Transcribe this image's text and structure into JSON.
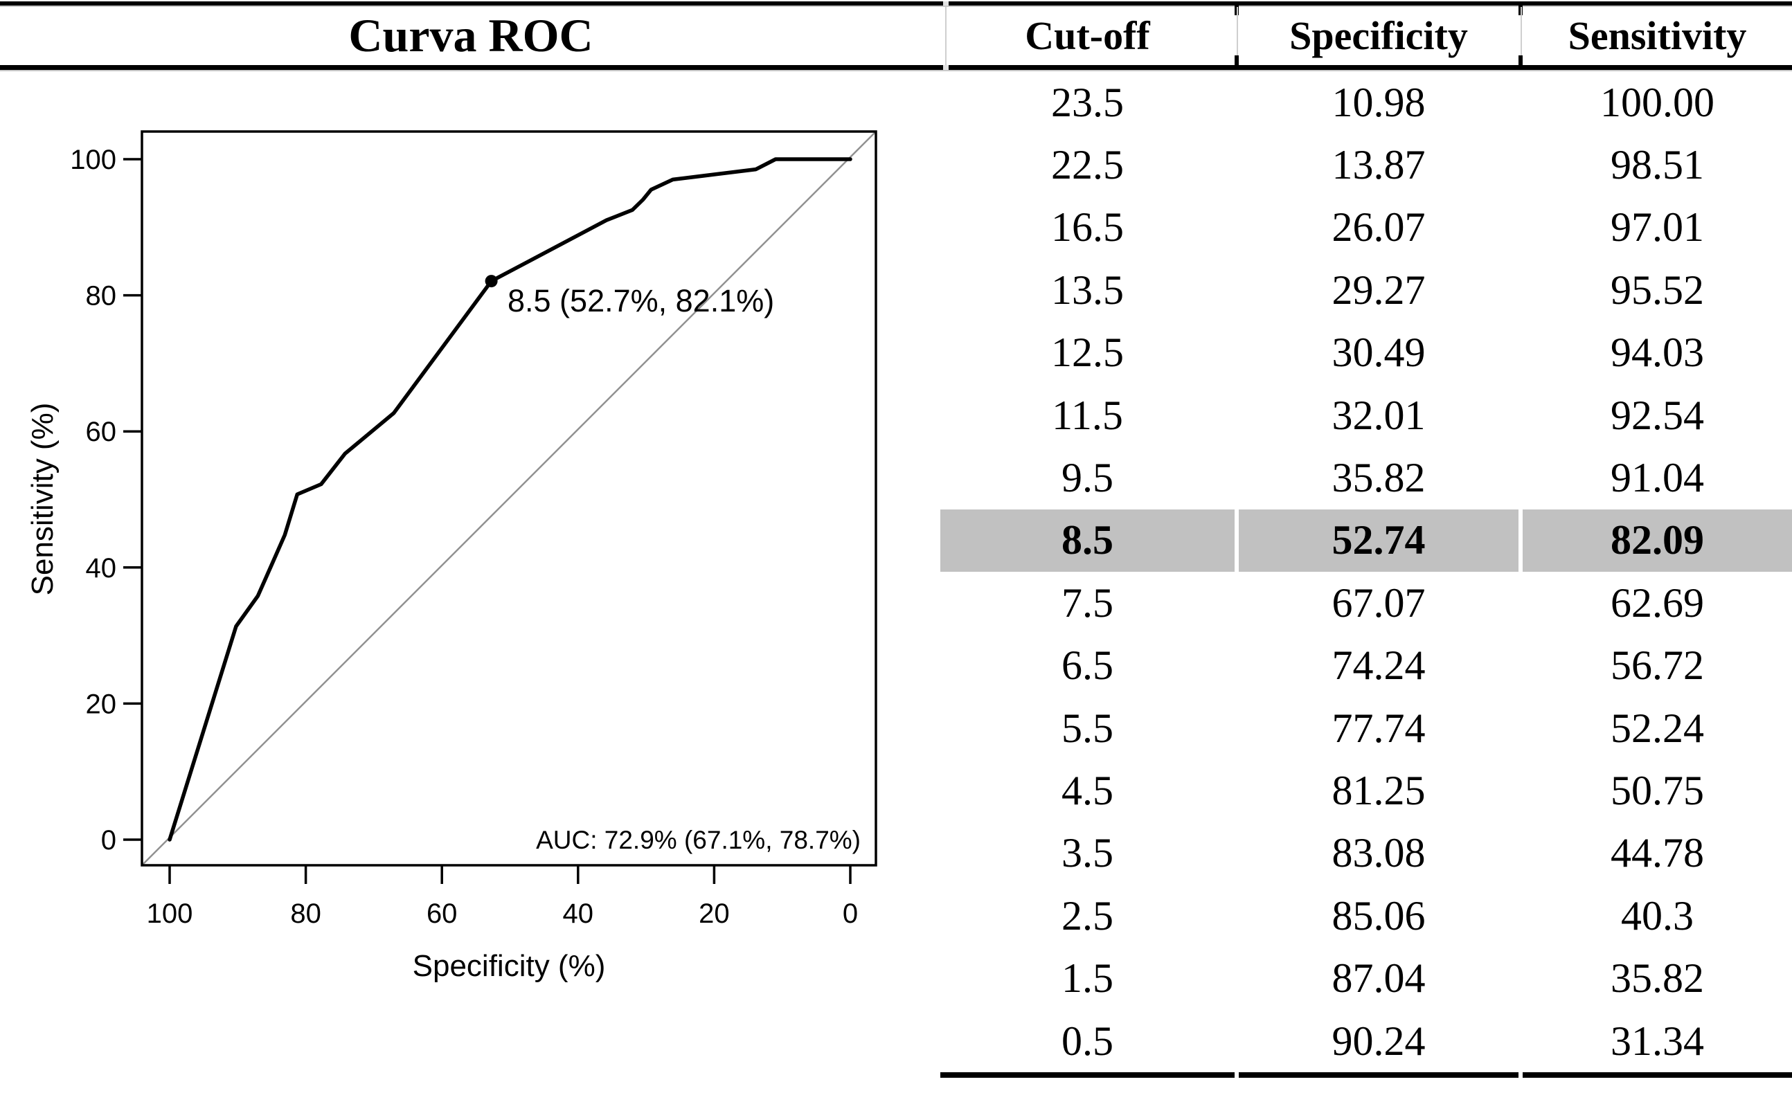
{
  "title": "Curva ROC",
  "table": {
    "headers": [
      "Cut-off",
      "Specificity",
      "Sensitivity"
    ],
    "rows": [
      {
        "cutoff": "23.5",
        "specificity": "10.98",
        "sensitivity": "100.00",
        "highlight": false
      },
      {
        "cutoff": "22.5",
        "specificity": "13.87",
        "sensitivity": "98.51",
        "highlight": false
      },
      {
        "cutoff": "16.5",
        "specificity": "26.07",
        "sensitivity": "97.01",
        "highlight": false
      },
      {
        "cutoff": "13.5",
        "specificity": "29.27",
        "sensitivity": "95.52",
        "highlight": false
      },
      {
        "cutoff": "12.5",
        "specificity": "30.49",
        "sensitivity": "94.03",
        "highlight": false
      },
      {
        "cutoff": "11.5",
        "specificity": "32.01",
        "sensitivity": "92.54",
        "highlight": false
      },
      {
        "cutoff": "9.5",
        "specificity": "35.82",
        "sensitivity": "91.04",
        "highlight": false
      },
      {
        "cutoff": "8.5",
        "specificity": "52.74",
        "sensitivity": "82.09",
        "highlight": true
      },
      {
        "cutoff": "7.5",
        "specificity": "67.07",
        "sensitivity": "62.69",
        "highlight": false
      },
      {
        "cutoff": "6.5",
        "specificity": "74.24",
        "sensitivity": "56.72",
        "highlight": false
      },
      {
        "cutoff": "5.5",
        "specificity": "77.74",
        "sensitivity": "52.24",
        "highlight": false
      },
      {
        "cutoff": "4.5",
        "specificity": "81.25",
        "sensitivity": "50.75",
        "highlight": false
      },
      {
        "cutoff": "3.5",
        "specificity": "83.08",
        "sensitivity": "44.78",
        "highlight": false
      },
      {
        "cutoff": "2.5",
        "specificity": "85.06",
        "sensitivity": "40.3",
        "highlight": false
      },
      {
        "cutoff": "1.5",
        "specificity": "87.04",
        "sensitivity": "35.82",
        "highlight": false
      },
      {
        "cutoff": "0.5",
        "specificity": "90.24",
        "sensitivity": "31.34",
        "highlight": false
      }
    ]
  },
  "chart_data": {
    "type": "line",
    "title": "Curva ROC",
    "xlabel": "Specificity (%)",
    "ylabel": "Sensitivity (%)",
    "x_axis": {
      "ticks": [
        100,
        80,
        60,
        40,
        20,
        0
      ],
      "range": [
        100,
        0
      ],
      "reversed": true
    },
    "y_axis": {
      "ticks": [
        0,
        20,
        40,
        60,
        80,
        100
      ],
      "range": [
        0,
        100
      ]
    },
    "grid": false,
    "diagonal_reference_line": true,
    "roc_points": [
      [
        100,
        0
      ],
      [
        90.24,
        31.34
      ],
      [
        87.04,
        35.82
      ],
      [
        85.06,
        40.3
      ],
      [
        83.08,
        44.78
      ],
      [
        81.25,
        50.75
      ],
      [
        77.74,
        52.24
      ],
      [
        74.24,
        56.72
      ],
      [
        67.07,
        62.69
      ],
      [
        52.74,
        82.09
      ],
      [
        35.82,
        91.04
      ],
      [
        32.01,
        92.54
      ],
      [
        30.49,
        94.03
      ],
      [
        29.27,
        95.52
      ],
      [
        26.07,
        97.01
      ],
      [
        13.87,
        98.51
      ],
      [
        10.98,
        100
      ],
      [
        0,
        100
      ]
    ],
    "marked_point": {
      "cutoff": 8.5,
      "specificity": 52.74,
      "sensitivity": 82.09,
      "label": "8.5 (52.7%, 82.1%)"
    },
    "auc_label": "AUC: 72.9% (67.1%, 78.7%)",
    "colors": {
      "curve": "#000000",
      "diagonal": "#919191",
      "auc_text": "#595959",
      "highlight_row": "#c1c1c1"
    }
  }
}
